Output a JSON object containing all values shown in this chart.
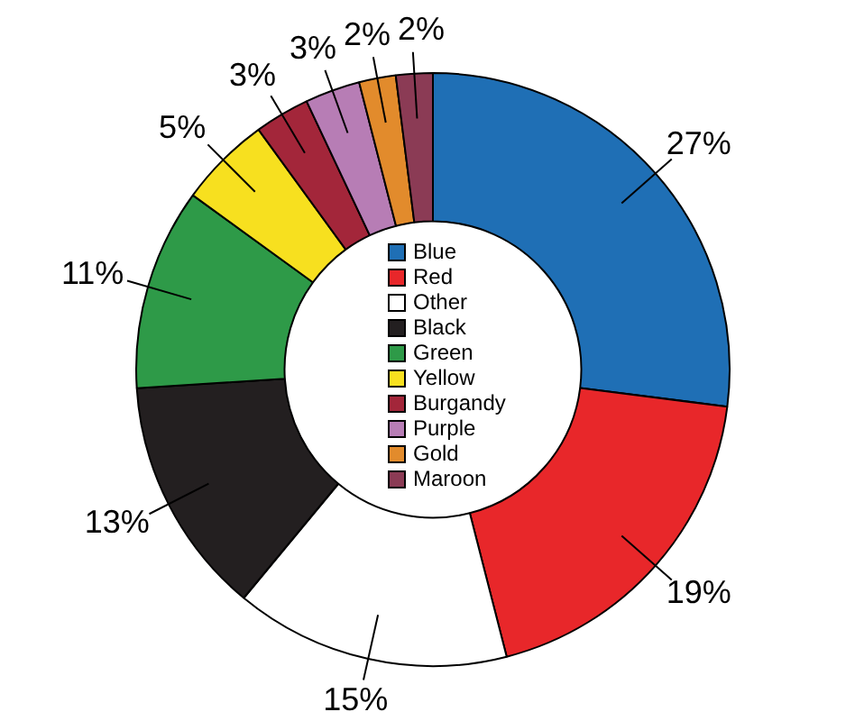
{
  "chart_data": {
    "type": "donut",
    "categories": [
      "Blue",
      "Red",
      "Other",
      "Black",
      "Green",
      "Yellow",
      "Burgandy",
      "Purple",
      "Gold",
      "Maroon"
    ],
    "values": [
      27,
      19,
      15,
      13,
      11,
      5,
      3,
      3,
      2,
      2
    ],
    "colors": [
      "#1f6fb5",
      "#e8272a",
      "#ffffff",
      "#231f20",
      "#2e9a48",
      "#f7e01f",
      "#a3263a",
      "#b77db5",
      "#e28b2c",
      "#8b3b55"
    ],
    "value_labels": [
      "27%",
      "19%",
      "15%",
      "13%",
      "11%",
      "5%",
      "3%",
      "3%",
      "2%",
      "2%"
    ],
    "legend": "center"
  }
}
